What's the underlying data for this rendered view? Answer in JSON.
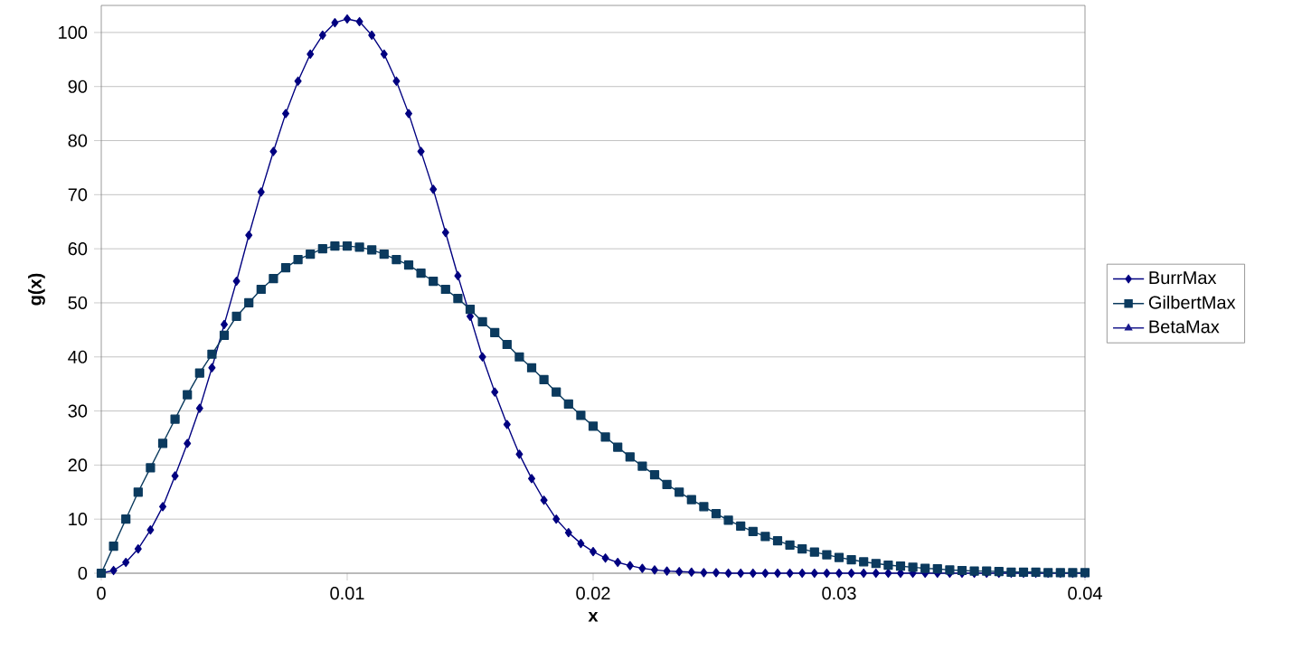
{
  "chart_data": {
    "type": "line",
    "xlabel": "x",
    "ylabel": "g(x)",
    "x": [
      0,
      0.0005,
      0.001,
      0.0015,
      0.002,
      0.0025,
      0.003,
      0.0035,
      0.004,
      0.0045,
      0.005,
      0.0055,
      0.006,
      0.0065,
      0.007,
      0.0075,
      0.008,
      0.0085,
      0.009,
      0.0095,
      0.01,
      0.0105,
      0.011,
      0.0115,
      0.012,
      0.0125,
      0.013,
      0.0135,
      0.014,
      0.0145,
      0.015,
      0.0155,
      0.016,
      0.0165,
      0.017,
      0.0175,
      0.018,
      0.0185,
      0.019,
      0.0195,
      0.02,
      0.0205,
      0.021,
      0.0215,
      0.022,
      0.0225,
      0.023,
      0.0235,
      0.024,
      0.0245,
      0.025,
      0.0255,
      0.026,
      0.0265,
      0.027,
      0.0275,
      0.028,
      0.0285,
      0.029,
      0.0295,
      0.03,
      0.0305,
      0.031,
      0.0315,
      0.032,
      0.0325,
      0.033,
      0.0335,
      0.034,
      0.0345,
      0.035,
      0.0355,
      0.036,
      0.0365,
      0.037,
      0.0375,
      0.038,
      0.0385,
      0.039,
      0.0395,
      0.04
    ],
    "series": [
      {
        "name": "BurrMax",
        "color": "#000080",
        "marker": "diamond",
        "values": [
          0,
          0.5,
          2,
          4.5,
          8,
          12.3,
          18,
          24,
          30.5,
          38,
          46,
          54,
          62.5,
          70.5,
          78,
          85,
          91,
          96,
          99.5,
          101.8,
          102.5,
          102,
          99.5,
          96,
          91,
          85,
          78,
          71,
          63,
          55,
          47.5,
          40,
          33.5,
          27.5,
          22,
          17.5,
          13.5,
          10,
          7.5,
          5.5,
          4,
          2.8,
          2,
          1.4,
          0.9,
          0.6,
          0.4,
          0.3,
          0.2,
          0.1,
          0.1,
          0,
          0,
          0,
          0,
          0,
          0,
          0,
          0,
          0,
          0,
          0,
          0,
          0,
          0,
          0,
          0,
          0,
          0,
          0,
          0,
          0,
          0,
          0,
          0,
          0,
          0,
          0,
          0,
          0,
          0
        ]
      },
      {
        "name": "GilbertMax",
        "color": "#0b3a5e",
        "marker": "square",
        "values": [
          0,
          5,
          10,
          15,
          19.5,
          24,
          28.5,
          33,
          37,
          40.5,
          44,
          47.5,
          50,
          52.5,
          54.5,
          56.5,
          58,
          59,
          60,
          60.5,
          60.5,
          60.3,
          59.8,
          59,
          58,
          57,
          55.5,
          54,
          52.5,
          50.8,
          48.8,
          46.5,
          44.5,
          42.3,
          40,
          38,
          35.8,
          33.5,
          31.3,
          29.2,
          27.2,
          25.2,
          23.3,
          21.5,
          19.8,
          18.2,
          16.4,
          15,
          13.6,
          12.3,
          11,
          9.8,
          8.7,
          7.7,
          6.8,
          6,
          5.2,
          4.5,
          3.9,
          3.4,
          2.9,
          2.5,
          2.1,
          1.8,
          1.5,
          1.3,
          1.1,
          0.9,
          0.8,
          0.6,
          0.5,
          0.4,
          0.4,
          0.3,
          0.2,
          0.2,
          0.2,
          0.1,
          0.1,
          0.1,
          0.1
        ]
      },
      {
        "name": "BetaMax",
        "color": "#1a1a8c",
        "marker": "triangle",
        "values": [
          null,
          null,
          null,
          null,
          null,
          null,
          null,
          null,
          null,
          null,
          null,
          null,
          null,
          null,
          null,
          null,
          null,
          null,
          null,
          null,
          null,
          null,
          null,
          null,
          null,
          null,
          null,
          null,
          null,
          null,
          null,
          null,
          null,
          null,
          null,
          null,
          null,
          null,
          null,
          null,
          null,
          null,
          null,
          null,
          null,
          null,
          null,
          null,
          null,
          null,
          null,
          null,
          null,
          null,
          null,
          null,
          null,
          null,
          null,
          null,
          null,
          null,
          null,
          null,
          null,
          null,
          null,
          null,
          null,
          null,
          null,
          null,
          null,
          null,
          null,
          null,
          null,
          null,
          null,
          null,
          null
        ]
      }
    ],
    "xlim": [
      0,
      0.04
    ],
    "ylim": [
      0,
      105
    ],
    "xticks": [
      0,
      0.01,
      0.02,
      0.03,
      0.04
    ],
    "yticks": [
      0,
      10,
      20,
      30,
      40,
      50,
      60,
      70,
      80,
      90,
      100
    ],
    "grid": "y",
    "legend": "right"
  }
}
